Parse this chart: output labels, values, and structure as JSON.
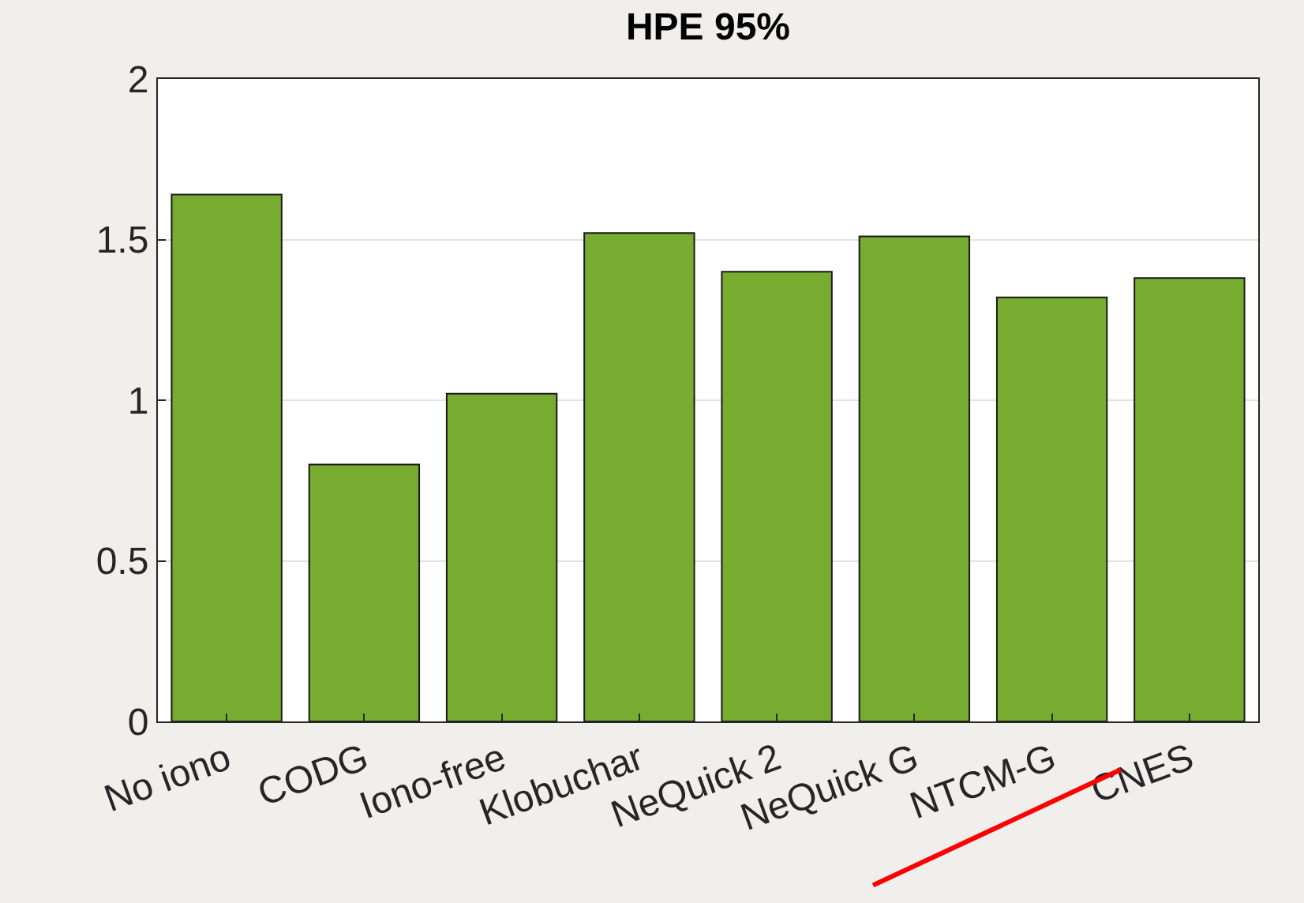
{
  "chart_data": {
    "type": "bar",
    "title": "HPE 95%",
    "categories": [
      "No iono",
      "CODG",
      "Iono-free",
      "Klobuchar",
      "NeQuick 2",
      "NeQuick G",
      "NTCM-G",
      "CNES"
    ],
    "values": [
      1.64,
      0.8,
      1.02,
      1.52,
      1.4,
      1.51,
      1.32,
      1.38
    ],
    "color": "#77ac30",
    "ylim": [
      0,
      2
    ],
    "yticks": [
      0,
      0.5,
      1,
      1.5,
      2
    ],
    "grid": "y"
  }
}
